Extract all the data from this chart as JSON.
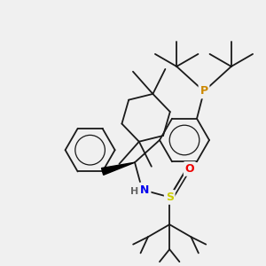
{
  "bg": "#f0f0f0",
  "bond_color": "#1a1a1a",
  "bond_lw": 1.3,
  "atom_colors": {
    "P": "#cc8800",
    "N": "#0000ee",
    "S": "#cccc00",
    "O": "#ee0000",
    "H": "#666666"
  },
  "scale": 1.0
}
